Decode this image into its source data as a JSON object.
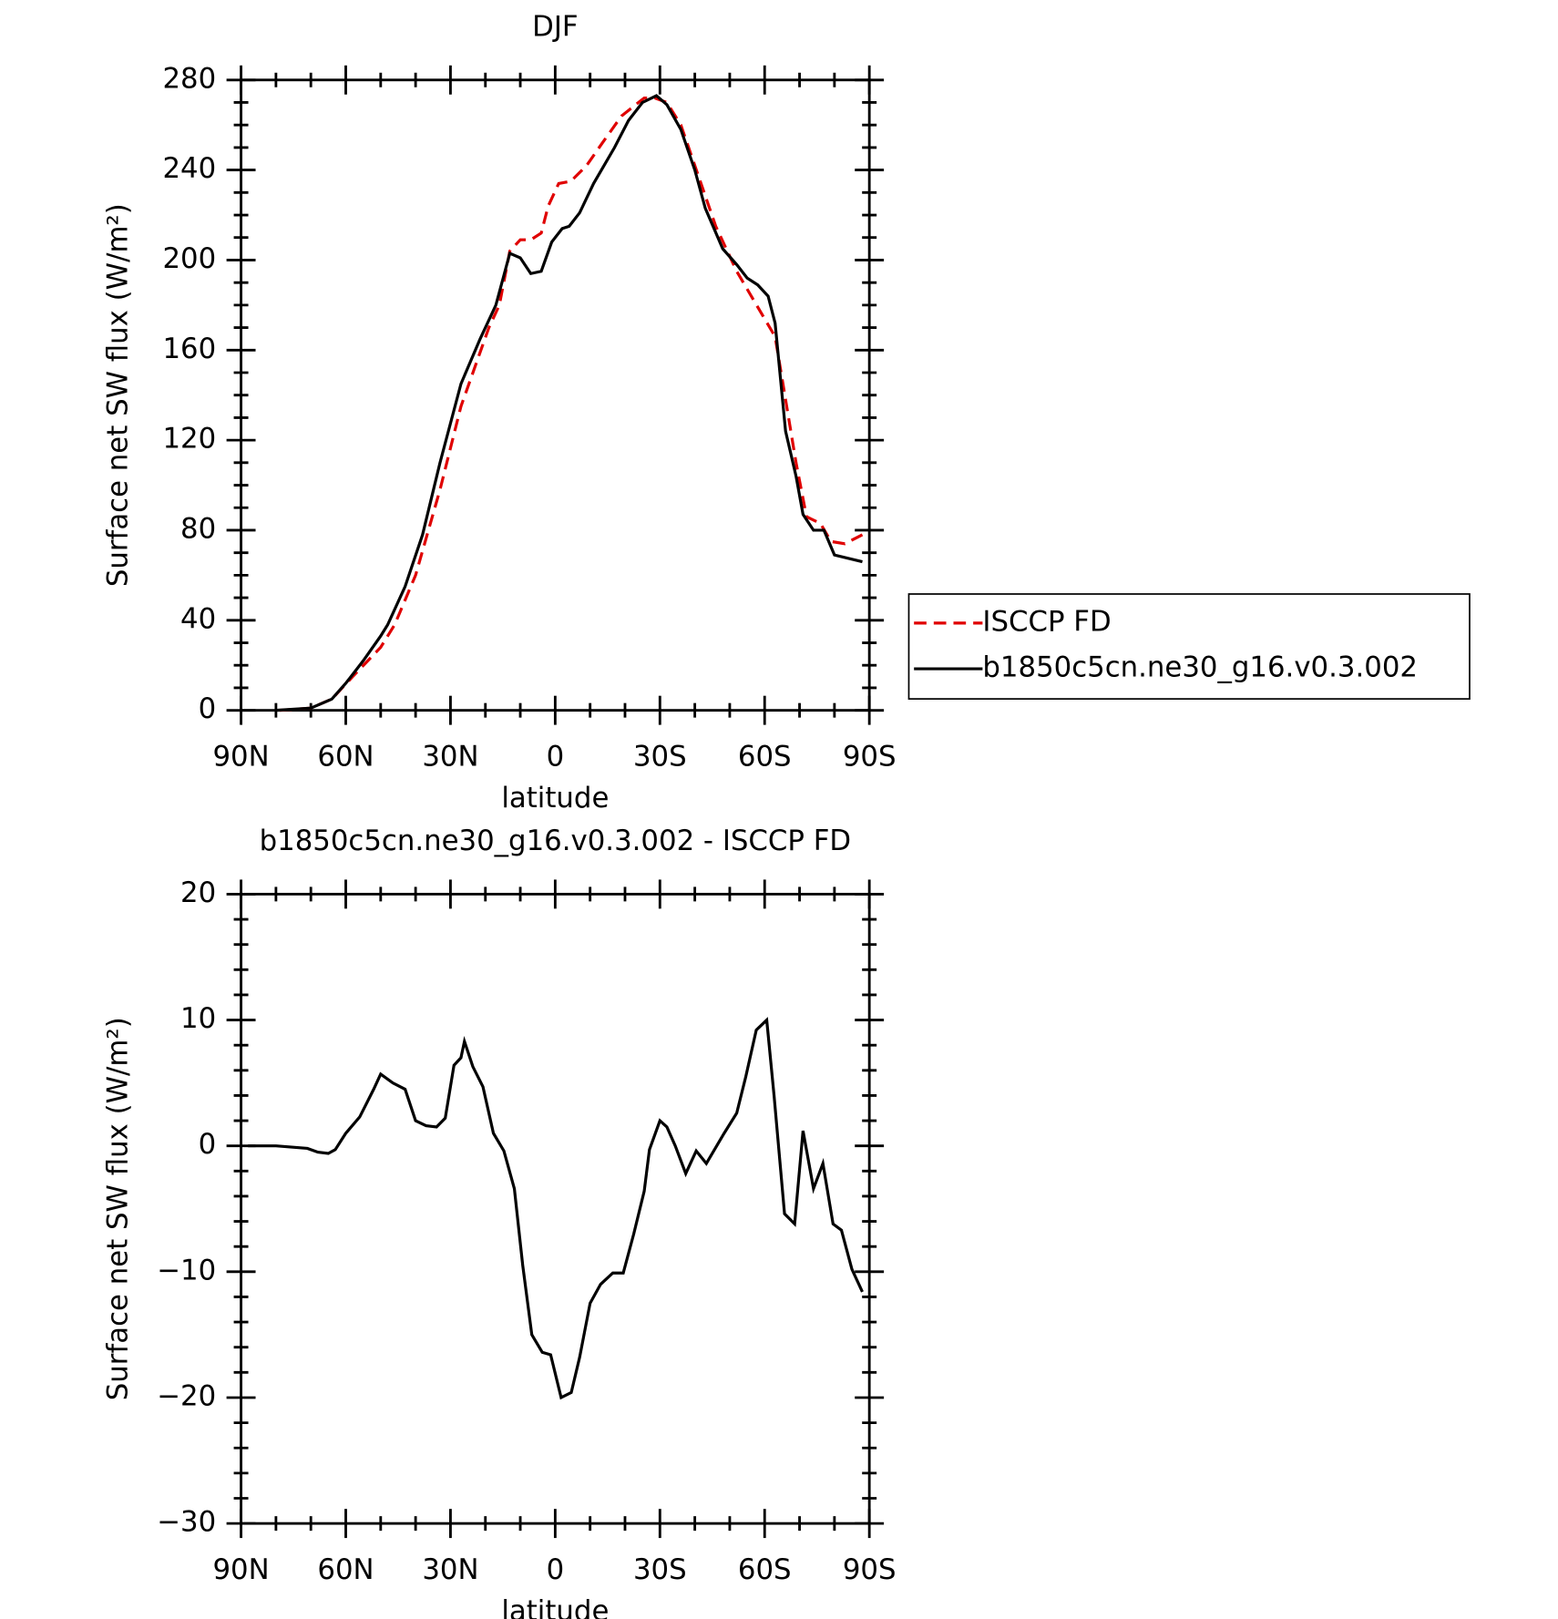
{
  "chart_data": [
    {
      "type": "line",
      "title": "DJF",
      "xlabel": "latitude",
      "ylabel": "Surface net SW flux (W/m²)",
      "xlim": [
        90,
        -90
      ],
      "xticks": [
        {
          "value": 90,
          "label": "90N"
        },
        {
          "value": 60,
          "label": "60N"
        },
        {
          "value": 30,
          "label": "30N"
        },
        0,
        {
          "value": -30,
          "label": "30S"
        },
        {
          "value": -60,
          "label": "60S"
        },
        {
          "value": -90,
          "label": "90S"
        }
      ],
      "ylim": [
        0,
        280
      ],
      "yticks": [
        0,
        40,
        80,
        120,
        160,
        200,
        240,
        280
      ],
      "legend": "right",
      "series": [
        {
          "name": "ISCCP FD",
          "color": "#e00000",
          "dash": true,
          "x": [
            79,
            70,
            64,
            58,
            50,
            46,
            40,
            33,
            27,
            19,
            16,
            13,
            10,
            7,
            4,
            2,
            -1,
            -4.5,
            -9,
            -13.5,
            -19,
            -25.5,
            -28.5,
            -32,
            -36,
            -46,
            -52,
            -63,
            -69,
            -72,
            -76,
            -79,
            -83,
            -88
          ],
          "values": [
            0,
            1,
            5,
            15,
            28,
            38,
            60,
            98,
            135,
            170,
            180,
            204,
            209,
            209,
            212,
            224,
            234,
            235,
            242,
            252,
            264,
            272,
            272,
            270,
            260,
            215,
            195,
            166,
            110,
            86,
            83,
            75,
            74,
            78
          ]
        },
        {
          "name": "b1850c5cn.ne30_g16.v0.3.002",
          "color": "#000000",
          "dash": false,
          "x": [
            80,
            70,
            64,
            60,
            55,
            50,
            48,
            43,
            38,
            33,
            27,
            21.5,
            17,
            13,
            10,
            7,
            4,
            1,
            -2,
            -4,
            -7,
            -11,
            -17,
            -21,
            -25,
            -29,
            -32,
            -36,
            -40,
            -43,
            -48,
            -52,
            -55,
            -58,
            -61,
            -63,
            -66,
            -69,
            -71,
            -74,
            -77,
            -80,
            -88
          ],
          "values": [
            0,
            1,
            5,
            12,
            22,
            33,
            38,
            55,
            78,
            110,
            145,
            165,
            180,
            203,
            201,
            194,
            195,
            208,
            214,
            215,
            221,
            234,
            250,
            262,
            270,
            273,
            269,
            258,
            240,
            223,
            205,
            198,
            192,
            189,
            184,
            172,
            124,
            104,
            87,
            80,
            80,
            69,
            66
          ]
        }
      ]
    },
    {
      "type": "line",
      "title": "b1850c5cn.ne30_g16.v0.3.002 - ISCCP FD",
      "xlabel": "latitude",
      "ylabel": "Surface net SW flux (W/m²)",
      "xlim": [
        90,
        -90
      ],
      "xticks": [
        {
          "value": 90,
          "label": "90N"
        },
        {
          "value": 60,
          "label": "60N"
        },
        {
          "value": 30,
          "label": "30N"
        },
        0,
        {
          "value": -30,
          "label": "30S"
        },
        {
          "value": -60,
          "label": "60S"
        },
        {
          "value": -90,
          "label": "90S"
        }
      ],
      "ylim": [
        -30,
        20
      ],
      "yticks": [
        {
          "value": -30,
          "label": "−30"
        },
        {
          "value": -20,
          "label": "−20"
        },
        {
          "value": -10,
          "label": "−10"
        },
        0,
        10,
        20
      ],
      "series": [
        {
          "color": "#000000",
          "dash": false,
          "x": [
            88,
            80,
            71,
            68,
            65,
            63,
            60,
            56,
            52,
            50,
            46.5,
            43,
            40,
            37,
            34,
            31.5,
            29,
            27,
            26,
            23.6,
            20.7,
            17.7,
            14.7,
            11.7,
            9.3,
            6.7,
            3.7,
            1.3,
            -1.7,
            -4.6,
            -7,
            -10,
            -13,
            -16.5,
            -19.5,
            -22.5,
            -25.5,
            -27,
            -30,
            -32,
            -34.4,
            -37.4,
            -40.4,
            -43.3,
            -48.4,
            -52,
            -54.6,
            -57.6,
            -60.6,
            -62.7,
            -65.7,
            -68.6,
            -71,
            -74,
            -76.7,
            -79.6,
            -82,
            -85,
            -88
          ],
          "values": [
            0,
            0,
            -0.2,
            -0.5,
            -0.6,
            -0.3,
            1,
            2.3,
            4.5,
            5.7,
            5,
            4.5,
            2,
            1.6,
            1.5,
            2.2,
            6.4,
            7,
            8.3,
            6.3,
            4.7,
            1,
            -0.4,
            -3.4,
            -9.5,
            -15,
            -16.4,
            -16.6,
            -20,
            -19.6,
            -16.8,
            -12.5,
            -11,
            -10.1,
            -10.1,
            -7,
            -3.6,
            -0.3,
            2,
            1.5,
            0,
            -2.2,
            -0.4,
            -1.4,
            1,
            2.6,
            5.5,
            9.2,
            10,
            4,
            -5.4,
            -6.2,
            1.2,
            -3.4,
            -1.4,
            -6.2,
            -6.7,
            -9.8,
            -11.6
          ]
        }
      ]
    }
  ]
}
